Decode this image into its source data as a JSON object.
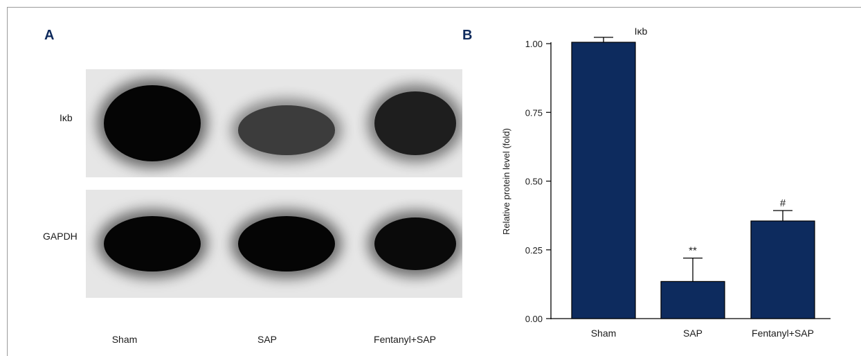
{
  "panels": {
    "a_label": "A",
    "b_label": "B"
  },
  "blot": {
    "rows": [
      {
        "label": "Iκb",
        "intensities": [
          1.0,
          0.45,
          0.75
        ]
      },
      {
        "label": "GAPDH",
        "intensities": [
          1.0,
          1.0,
          0.95
        ]
      }
    ],
    "lanes": [
      "Sham",
      "SAP",
      "Fentanyl+SAP"
    ]
  },
  "colors": {
    "bar_fill": "#0d2b5e",
    "bar_stroke": "#000000",
    "panel_letter": "#0e2a5c"
  },
  "chart_data": {
    "type": "bar",
    "title": "Iκb",
    "xlabel": "",
    "ylabel": "Relative protein level (fold)",
    "categories": [
      "Sham",
      "SAP",
      "Fentanyl+SAP"
    ],
    "values": [
      1.005,
      0.135,
      0.355
    ],
    "errors": [
      0.018,
      0.085,
      0.038
    ],
    "annotations": [
      "",
      "**",
      "#"
    ],
    "ylim": [
      0,
      1.0
    ],
    "yticks": [
      "0.00",
      "0.25",
      "0.50",
      "0.75",
      "1.00"
    ],
    "ytick_values": [
      0,
      0.25,
      0.5,
      0.75,
      1.0
    ],
    "grid": false,
    "legend": "none"
  }
}
